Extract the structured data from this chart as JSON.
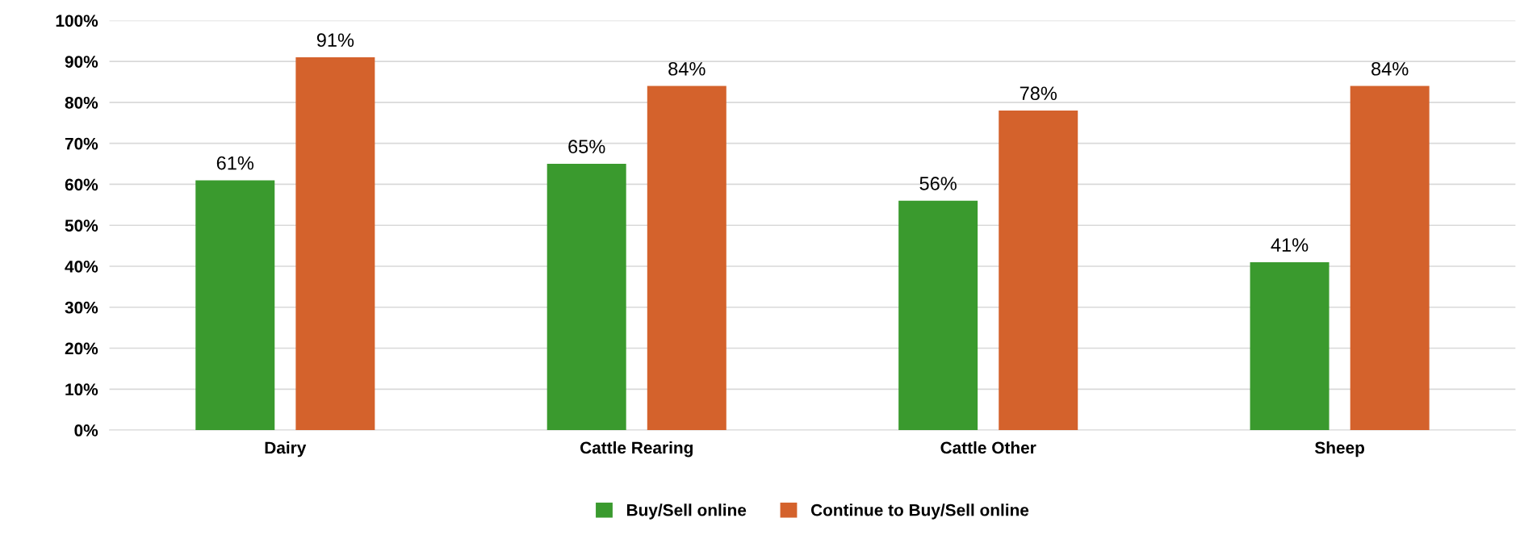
{
  "chart_data": {
    "type": "bar",
    "categories": [
      "Dairy",
      "Cattle Rearing",
      "Cattle Other",
      "Sheep"
    ],
    "series": [
      {
        "name": "Buy/Sell online",
        "color": "#3a9a2e",
        "values": [
          61,
          65,
          56,
          41
        ],
        "value_labels": [
          "61%",
          "65%",
          "56%",
          "41%"
        ]
      },
      {
        "name": "Continue to Buy/Sell online",
        "color": "#d4622c",
        "values": [
          91,
          84,
          78,
          84
        ],
        "value_labels": [
          "91%",
          "84%",
          "78%",
          "84%"
        ]
      }
    ],
    "ylim": [
      0,
      100
    ],
    "yticks": [
      {
        "value": 0,
        "label": "0%"
      },
      {
        "value": 10,
        "label": "10%"
      },
      {
        "value": 20,
        "label": "20%"
      },
      {
        "value": 30,
        "label": "30%"
      },
      {
        "value": 40,
        "label": "40%"
      },
      {
        "value": 50,
        "label": "50%"
      },
      {
        "value": 60,
        "label": "60%"
      },
      {
        "value": 70,
        "label": "70%"
      },
      {
        "value": 80,
        "label": "80%"
      },
      {
        "value": 90,
        "label": "90%"
      },
      {
        "value": 100,
        "label": "100%"
      }
    ],
    "grid": "y",
    "legend": "bottom"
  }
}
